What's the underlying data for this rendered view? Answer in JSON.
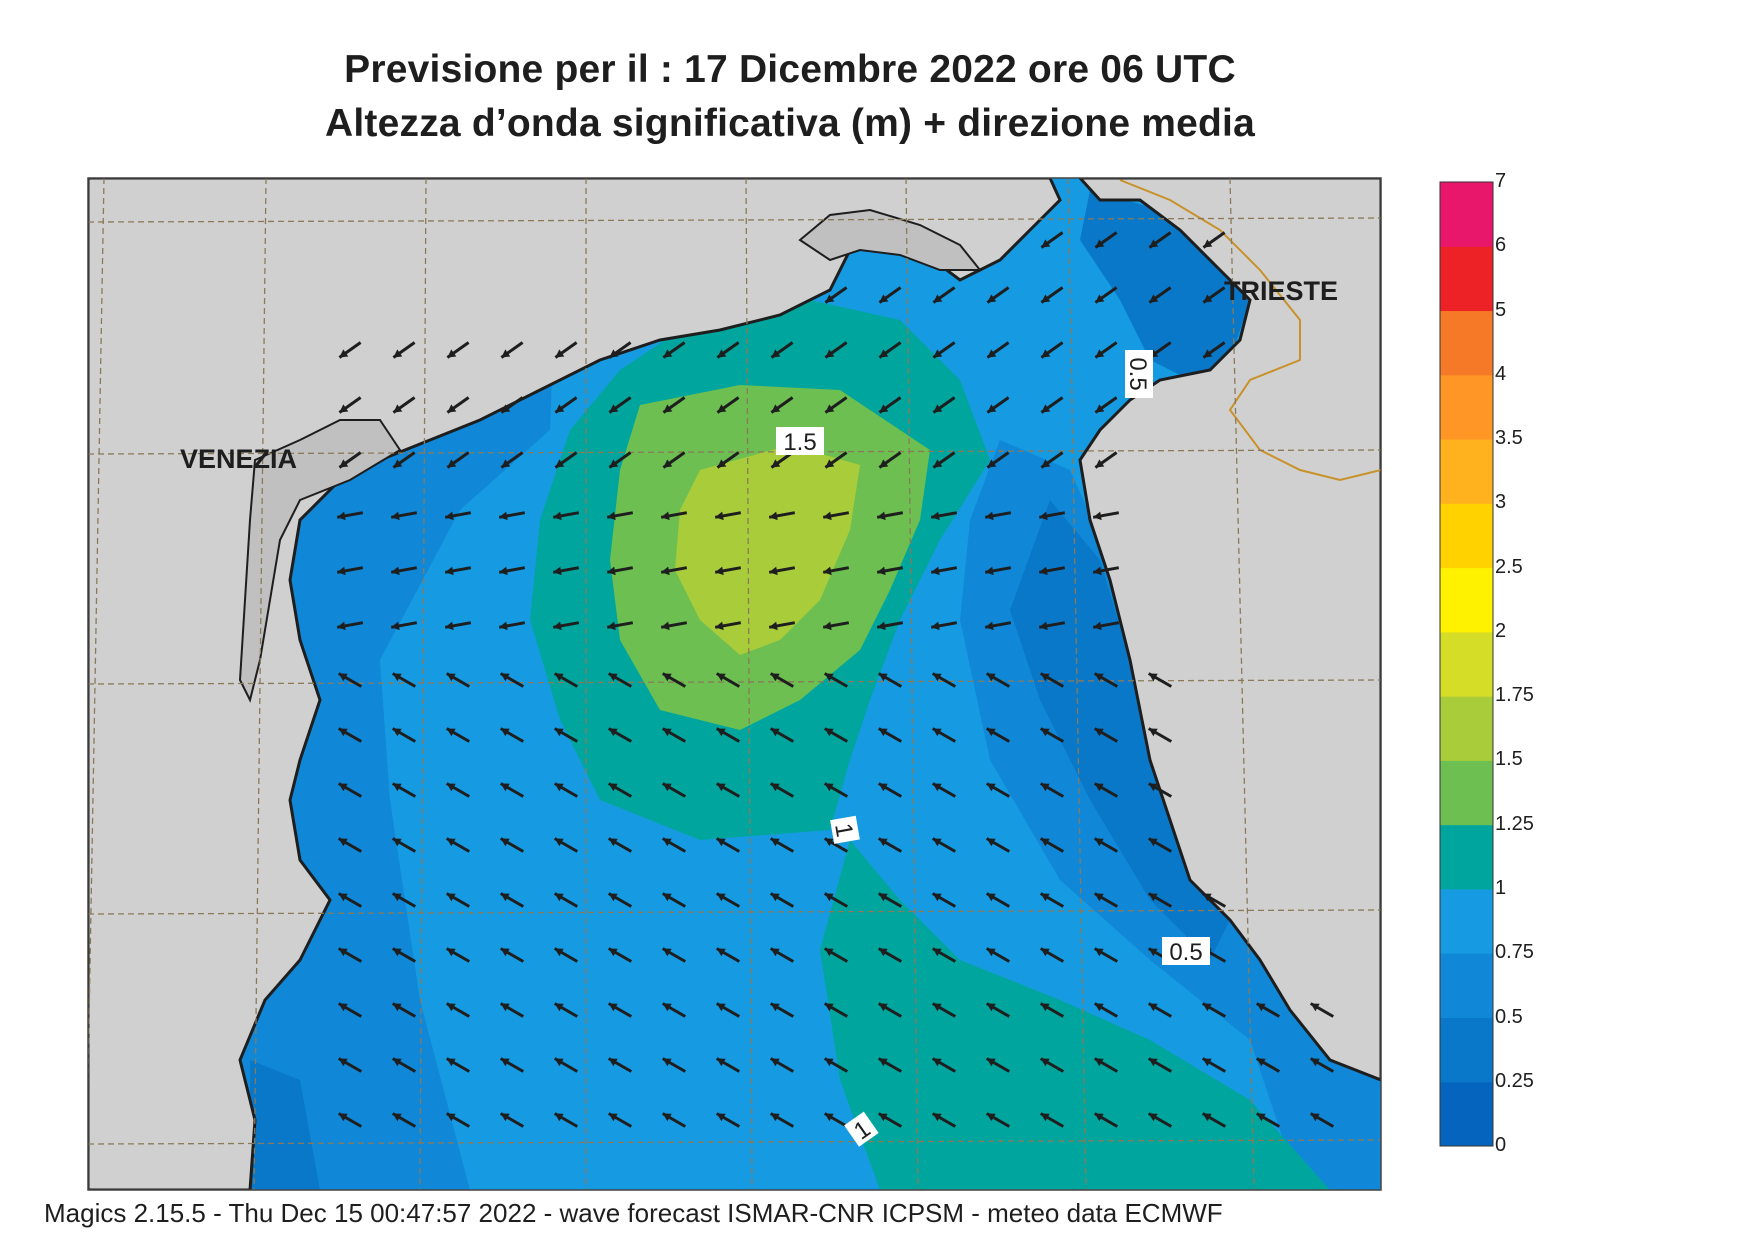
{
  "title": {
    "line1": "Previsione per il  :  17 Dicembre  2022   ore 06 UTC",
    "line2": "Altezza d’onda significativa (m) + direzione media"
  },
  "places": {
    "venezia": "VENEZIA",
    "trieste": "TRIESTE"
  },
  "contour_labels": [
    "1.5",
    "0.5",
    "1",
    "0.5",
    "1"
  ],
  "colorbar": {
    "levels": [
      "0",
      "0.25",
      "0.5",
      "0.75",
      "1",
      "1.25",
      "1.5",
      "1.75",
      "2",
      "2.5",
      "3",
      "3.5",
      "4",
      "5",
      "6",
      "7"
    ],
    "colors": [
      "#0565be",
      "#0a78c8",
      "#1088d7",
      "#169be2",
      "#00a69d",
      "#6cbf50",
      "#a9cc3a",
      "#d6dd27",
      "#fff200",
      "#ffd200",
      "#ffb21e",
      "#ff9626",
      "#f57926",
      "#ec2227",
      "#e8176b"
    ]
  },
  "footer": "Magics 2.15.5 - Thu Dec 15 00:47:57 2022 - wave forecast  ISMAR-CNR  ICPSM - meteo data   ECMWF"
}
